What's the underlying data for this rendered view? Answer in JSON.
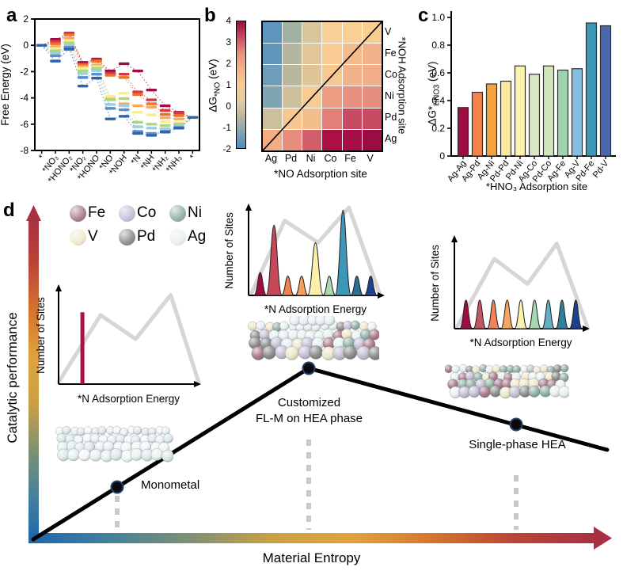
{
  "chart_data": {
    "panel_a": {
      "letter": "a",
      "type": "step-line",
      "ylabel": "Free Energy (eV)",
      "ylim": [
        -8,
        2
      ],
      "yticks": [
        2,
        0,
        -2,
        -4,
        -6,
        -8
      ],
      "categories": [
        "*",
        "*NO₃",
        "*HONO₂",
        "*NO₂",
        "*HONO",
        "*NO",
        "*NOH",
        "*N",
        "*NH",
        "*NH₂",
        "*NH₃",
        "*"
      ],
      "series": [
        {
          "color": "#9e0c44",
          "values": [
            0,
            0.45,
            0.92,
            -1.3,
            -1.05,
            -1.95,
            -1.4,
            -1.95,
            -3.4,
            -4.6,
            -5.1,
            -5.48
          ]
        },
        {
          "color": "#d23b45",
          "values": [
            0,
            0.3,
            0.85,
            -1.42,
            -1.12,
            -2.12,
            -2.2,
            -3.55,
            -4.15,
            -4.95,
            -5.15,
            -5.48
          ]
        },
        {
          "color": "#ee7028",
          "values": [
            0,
            0.12,
            0.8,
            -1.5,
            -1.22,
            -2.28,
            -2.45,
            -3.75,
            -4.45,
            -5.25,
            -5.35,
            -5.48
          ]
        },
        {
          "color": "#f9a75c",
          "values": [
            0,
            -0.1,
            0.55,
            -1.62,
            -1.5,
            -4.0,
            -4.45,
            -4.6,
            -4.7,
            -5.5,
            -5.6,
            -5.48
          ]
        },
        {
          "color": "#f7ec9a",
          "values": [
            0,
            -0.25,
            0.35,
            -1.75,
            -1.62,
            -3.9,
            -3.65,
            -5.1,
            -5.3,
            -5.8,
            -5.85,
            -5.48
          ]
        },
        {
          "color": "#a8d977",
          "values": [
            0,
            -0.42,
            0.18,
            -1.95,
            -1.75,
            -4.15,
            -4.05,
            -5.85,
            -6.0,
            -6.1,
            -6.0,
            -5.48
          ]
        },
        {
          "color": "#9ccee2",
          "values": [
            0,
            -0.6,
            0.02,
            -2.15,
            -1.92,
            -4.5,
            -4.6,
            -6.2,
            -6.3,
            -6.35,
            -6.15,
            -5.48
          ]
        },
        {
          "color": "#5b8fc9",
          "values": [
            0,
            -0.8,
            -0.15,
            -2.45,
            -2.2,
            -4.8,
            -4.9,
            -6.55,
            -6.7,
            -6.55,
            -6.25,
            -5.48
          ]
        },
        {
          "color": "#2f63ad",
          "values": [
            0,
            -1.2,
            -0.3,
            -3.1,
            -2.5,
            -5.6,
            -5.4,
            -6.7,
            -6.85,
            -6.6,
            -6.3,
            -5.48
          ]
        }
      ]
    },
    "panel_b": {
      "letter": "b",
      "type": "heatmap",
      "colorbar": {
        "label_prefix": "ΔG",
        "label_sub": "*NO",
        "label_suffix": " (eV)",
        "ticks": [
          4,
          3,
          2,
          1,
          0,
          -1,
          -2
        ],
        "gradient": [
          "#9e0c44",
          "#c64a62",
          "#e8917e",
          "#f3b189",
          "#f8cb92",
          "#e3cda0",
          "#b9b89f",
          "#7fa5b2",
          "#4d8cbb"
        ]
      },
      "xlabel": "*NO Adsorption site",
      "right_label": "*NOH Adsorption site",
      "cols": [
        "Ag",
        "Pd",
        "Ni",
        "Co",
        "Fe",
        "V"
      ],
      "rows": [
        "V",
        "Fe",
        "Co",
        "Ni",
        "Pd",
        "Ag"
      ],
      "values": [
        [
          -1.5,
          -0.4,
          0.4,
          0.9,
          0.9,
          0.9
        ],
        [
          -1.5,
          -0.2,
          0.6,
          1.0,
          1.3,
          1.4
        ],
        [
          -1.2,
          -0.2,
          0.5,
          1.0,
          1.4,
          1.5
        ],
        [
          -1.0,
          0.3,
          0.9,
          1.9,
          2.1,
          2.1
        ],
        [
          0.3,
          0.9,
          1.1,
          2.2,
          2.8,
          2.8
        ],
        [
          1.4,
          1.9,
          2.5,
          3.4,
          3.5,
          3.7
        ]
      ],
      "cell_colors": [
        [
          "#5e95bd",
          "#9fb2a4",
          "#d8c59c",
          "#f8cf96",
          "#f9cf95",
          "#f9ce93"
        ],
        [
          "#6095bb",
          "#b4b59e",
          "#e2c899",
          "#f8cb92",
          "#f5bb8d",
          "#f3b189"
        ],
        [
          "#6f9db8",
          "#b9b79e",
          "#dfc598",
          "#f7c992",
          "#f3b289",
          "#f2ae86"
        ],
        [
          "#7fa5b2",
          "#cfc09b",
          "#f7cc93",
          "#ec9d81",
          "#e8917e",
          "#e78f7e"
        ],
        [
          "#cdbf9c",
          "#f6c890",
          "#f4bd8c",
          "#e28078",
          "#c64a62",
          "#c64a62"
        ],
        [
          "#f2ad85",
          "#e68d7d",
          "#d05f6b",
          "#ab1045",
          "#a50f45",
          "#9c0c44"
        ]
      ]
    },
    "panel_c": {
      "letter": "c",
      "type": "bar",
      "ylabel_prefix": "ΔG*",
      "ylabel_sub": "HNO3",
      "ylabel_suffix": " (eV)",
      "ylim": [
        0,
        1.0
      ],
      "yticks": [
        0,
        0.2,
        0.4,
        0.6,
        0.8,
        1.0
      ],
      "xlabel": "*HNO₃ Adsorption site",
      "categories": [
        "Ag-Ag",
        "Ag-Pd",
        "Ag-Ni",
        "Pd-Pd",
        "Pd-Ni",
        "Ag-Co",
        "Pd-Co",
        "Ag-Fe",
        "Ag-V",
        "Pd-Fe",
        "Pd-V"
      ],
      "values": [
        0.35,
        0.46,
        0.52,
        0.54,
        0.65,
        0.59,
        0.65,
        0.62,
        0.63,
        0.96,
        0.94
      ],
      "colors": [
        "#9e0c44",
        "#f5824a",
        "#f2a33d",
        "#fbe8a2",
        "#fbf3ae",
        "#d9e8c4",
        "#d2e5bf",
        "#9ed4ab",
        "#85bfe0",
        "#3d97b8",
        "#4a68ae"
      ]
    },
    "panel_d": {
      "letter": "d",
      "type": "schematic",
      "ylabel": "Catalytic performance",
      "xlabel": "Material Entropy",
      "axis_gradient": [
        "#1d66ae",
        "#44809c",
        "#7e9173",
        "#caa045",
        "#e0a33c",
        "#d4742f",
        "#bc4537",
        "#a93043"
      ],
      "legend": [
        {
          "label": "Fe",
          "color": "#ab7e8f"
        },
        {
          "label": "Co",
          "color": "#c6c0d6"
        },
        {
          "label": "Ni",
          "color": "#93b1a7"
        },
        {
          "label": "V",
          "color": "#efe8cd"
        },
        {
          "label": "Pd",
          "color": "#8f8f8f"
        },
        {
          "label": "Ag",
          "color": "#e8f0f1"
        }
      ],
      "annotations": {
        "point1": "Monometal",
        "point2_line1": "Customized",
        "point2_line2": "FL-M on HEA phase",
        "point3": "Single-phase HEA"
      },
      "insets": [
        {
          "name": "monometal-sites",
          "ylabel": "Number of Sites",
          "xlabel": "*N Adsorption Energy",
          "profile": [
            [
              0,
              0.02
            ],
            [
              0.3,
              0.72
            ],
            [
              0.55,
              0.47
            ],
            [
              0.8,
              0.93
            ],
            [
              1,
              0.02
            ]
          ],
          "spike": {
            "x": 0.17,
            "h": 0.75,
            "color": "#a81248"
          }
        },
        {
          "name": "customized-sites",
          "ylabel": "Number of Sites",
          "xlabel": "*N Adsorption Energy",
          "profile": [
            [
              0.02,
              0.02
            ],
            [
              0.27,
              0.85
            ],
            [
              0.52,
              0.6
            ],
            [
              0.75,
              1.0
            ],
            [
              0.98,
              0.02
            ]
          ],
          "peaks": {
            "heights": [
              0.26,
              0.8,
              0.22,
              0.22,
              0.6,
              0.22,
              0.97,
              0.22,
              0.22
            ],
            "colors": [
              "#9e0c44",
              "#c4485a",
              "#f0824d",
              "#f5a05b",
              "#faf0a9",
              "#abd9b5",
              "#3d97b8",
              "#2c6f92",
              "#1d418f"
            ]
          }
        },
        {
          "name": "single-phase-sites",
          "ylabel": "Number of Sites",
          "xlabel": "*N Adsorption Energy",
          "profile": [
            [
              0.02,
              0.02
            ],
            [
              0.3,
              0.78
            ],
            [
              0.55,
              0.5
            ],
            [
              0.77,
              0.95
            ],
            [
              1,
              0.02
            ]
          ],
          "peaks": {
            "heights": [
              0.32,
              0.32,
              0.32,
              0.32,
              0.32,
              0.32,
              0.32,
              0.32,
              0.32
            ],
            "colors": [
              "#9e0c44",
              "#c45563",
              "#f0835a",
              "#f6a75f",
              "#fbf0ae",
              "#a5d8ae",
              "#62aec2",
              "#327e9e",
              "#1d418f"
            ]
          }
        }
      ],
      "sphere_palette": {
        "Fe": "#ab7e8f",
        "Co": "#c6c0d6",
        "Ni": "#93b1a7",
        "V": "#efe8cd",
        "Pd": "#8f8f8f",
        "Ag": "#e8f0f1"
      },
      "mono_palette": [
        "#e8f0f1",
        "#dde9eb",
        "#f2f7f8"
      ]
    }
  }
}
